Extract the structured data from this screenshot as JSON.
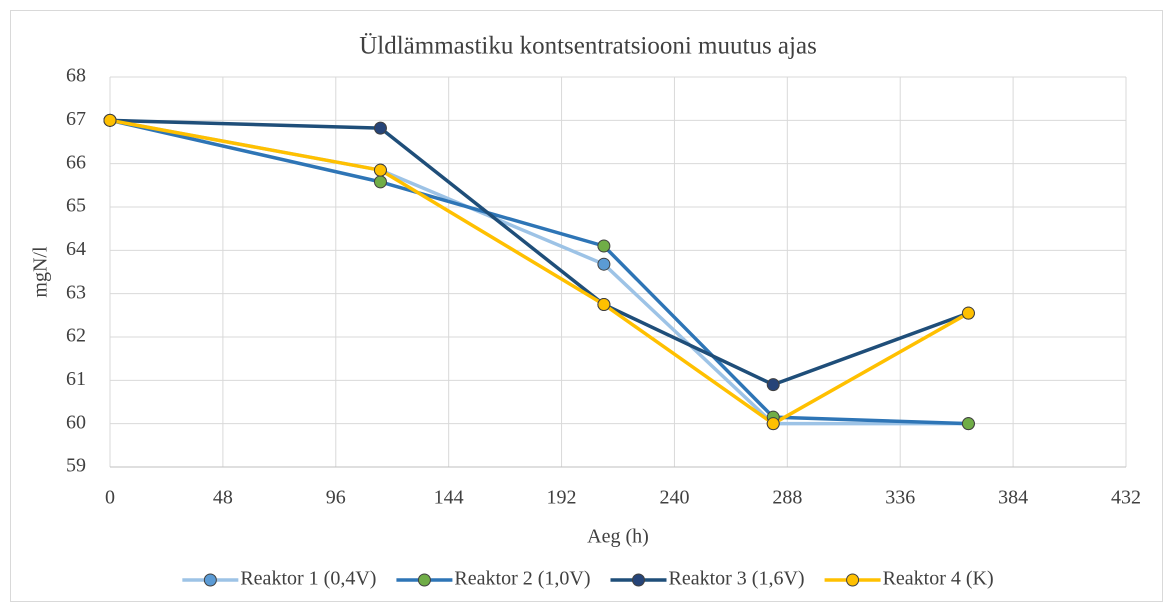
{
  "chart_data": {
    "type": "line",
    "title": "Üldlämmastiku kontsentratsiooni muutus ajas",
    "x_label": "Aeg (h)",
    "y_label": "mgN/l",
    "x": [
      0,
      115,
      210,
      282,
      365
    ],
    "series": [
      {
        "name": "Reaktor 1 (0,4V)",
        "color": "#9dc3e6",
        "marker_color": "#5b9bd5",
        "values": [
          67,
          65.85,
          63.68,
          60.0,
          60.0
        ]
      },
      {
        "name": "Reaktor 2 (1,0V)",
        "color": "#2e75b6",
        "marker_color": "#70ad47",
        "values": [
          67,
          65.58,
          64.1,
          60.15,
          60.0
        ]
      },
      {
        "name": "Reaktor 3 (1,6V)",
        "color": "#1f4e79",
        "marker_color": "#264478",
        "values": [
          67,
          66.82,
          62.75,
          60.9,
          62.55
        ]
      },
      {
        "name": "Reaktor 4 (K)",
        "color": "#ffc000",
        "marker_color": "#ffc000",
        "values": [
          67,
          65.85,
          62.75,
          60.0,
          62.55
        ]
      }
    ],
    "xlim": [
      0,
      432
    ],
    "xticks": [
      0,
      48,
      96,
      144,
      192,
      240,
      288,
      336,
      384,
      432
    ],
    "ylim": [
      59,
      68
    ],
    "yticks": [
      59,
      60,
      61,
      62,
      63,
      64,
      65,
      66,
      67,
      68
    ],
    "grid": true,
    "legend": "bottom"
  }
}
